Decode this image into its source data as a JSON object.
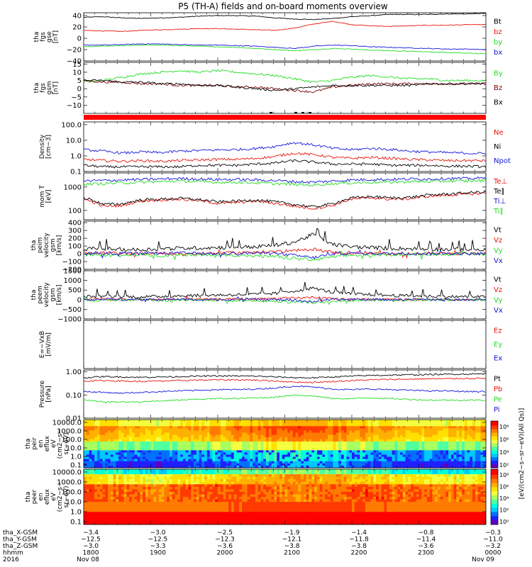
{
  "figure": {
    "title": "P5 (TH-A) fields and on-board moments overview",
    "year": "2016",
    "date_start": "Nov 08",
    "date_end": "Nov 09"
  },
  "colors": {
    "black": "#000000",
    "red": "#e8140c",
    "green": "#22dd22",
    "blue": "#1414d8",
    "darkred": "#7a0000"
  },
  "chart_data": [
    {
      "type": "line",
      "id": "fgs-gse",
      "ylabel": [
        "tha",
        "fgs",
        "gse",
        "[nT]"
      ],
      "yticks": [
        "40",
        "20",
        "0",
        "−20",
        "−40"
      ],
      "ylim": [
        -40,
        45
      ],
      "series": [
        {
          "name": "Bt",
          "color": "#000000",
          "values": [
            37,
            38,
            36,
            35,
            36,
            37,
            39,
            40,
            40,
            39,
            36,
            34,
            33,
            35,
            38,
            40,
            42,
            42,
            42,
            43,
            43,
            44
          ]
        },
        {
          "name": "bz",
          "color": "#e8140c",
          "values": [
            14,
            13,
            12,
            14,
            15,
            16,
            17,
            17,
            16,
            15,
            14,
            18,
            25,
            30,
            24,
            22,
            21,
            22,
            23,
            23,
            24,
            24
          ]
        },
        {
          "name": "by",
          "color": "#22dd22",
          "values": [
            -15,
            -14,
            -13,
            -12,
            -12,
            -13,
            -14,
            -15,
            -16,
            -18,
            -20,
            -22,
            -20,
            -18,
            -19,
            -21,
            -22,
            -23,
            -24,
            -25,
            -26,
            -28
          ]
        },
        {
          "name": "bx",
          "color": "#1414d8",
          "values": [
            -12,
            -12,
            -11,
            -10,
            -10,
            -11,
            -12,
            -12,
            -13,
            -14,
            -16,
            -18,
            -14,
            -12,
            -13,
            -15,
            -16,
            -17,
            -18,
            -19,
            -19,
            -20
          ]
        }
      ]
    },
    {
      "type": "line",
      "id": "fgs-gsm",
      "ylabel": [
        "tha",
        "fgs",
        "gsm",
        "[nT]"
      ],
      "yticks": [
        "15",
        "10",
        "5",
        "0",
        "−5",
        "−10"
      ],
      "ylim": [
        -15,
        16
      ],
      "series": [
        {
          "name": "By",
          "color": "#22dd22",
          "values": [
            4,
            5,
            7,
            9,
            10,
            11,
            10,
            11,
            10,
            9,
            8,
            6,
            4,
            5,
            7,
            8,
            7,
            6,
            6,
            5,
            5,
            5
          ]
        },
        {
          "name": "Bz",
          "color": "#7a0000",
          "values": [
            5,
            4,
            4,
            3,
            3,
            2,
            2,
            2,
            1,
            1,
            0,
            -1,
            -2,
            1,
            2,
            3,
            3,
            3,
            3,
            3,
            3,
            3
          ]
        },
        {
          "name": "Bx",
          "color": "#000000",
          "values": [
            5,
            5,
            4,
            4,
            3,
            3,
            2,
            2,
            1,
            0,
            -1,
            0,
            1,
            2,
            2,
            2,
            2,
            2,
            3,
            3,
            3,
            3
          ]
        }
      ]
    },
    {
      "type": "line",
      "id": "density",
      "scale": "log",
      "ylabel": [
        "Density",
        "[cm−3]"
      ],
      "yticks": [
        "100.0",
        "10.0",
        "1.0",
        "0.1"
      ],
      "ylim": [
        0.1,
        150
      ],
      "series": [
        {
          "name": "Ne",
          "color": "#e8140c",
          "values": [
            0.6,
            0.5,
            0.45,
            0.5,
            0.45,
            0.5,
            0.55,
            0.6,
            0.6,
            0.7,
            0.9,
            1.5,
            1.2,
            0.8,
            0.7,
            0.8,
            0.7,
            0.6,
            0.55,
            0.5,
            0.5,
            0.5
          ]
        },
        {
          "name": "Ni",
          "color": "#000000",
          "values": [
            0.25,
            0.2,
            0.2,
            0.2,
            0.2,
            0.2,
            0.25,
            0.25,
            0.25,
            0.3,
            0.35,
            0.5,
            0.4,
            0.3,
            0.3,
            0.3,
            0.25,
            0.25,
            0.25,
            0.22,
            0.22,
            0.2
          ]
        },
        {
          "name": "Npot",
          "color": "#1414d8",
          "values": [
            2.5,
            2,
            1.5,
            1.8,
            1.6,
            2,
            2.2,
            2.4,
            2.5,
            3,
            4,
            7,
            5,
            3,
            2.5,
            3,
            2.6,
            2,
            1.8,
            1.6,
            1.5,
            1.4
          ]
        }
      ]
    },
    {
      "type": "line",
      "id": "temperature",
      "scale": "log",
      "ylabel": [
        "mom T",
        "[eV]"
      ],
      "yticks": [
        "1000",
        "100"
      ],
      "ylim": [
        40,
        4000
      ],
      "series": [
        {
          "name": "Te⊥",
          "color": "#e8140c",
          "values": [
            300,
            150,
            160,
            250,
            280,
            300,
            260,
            200,
            220,
            250,
            200,
            150,
            120,
            160,
            300,
            350,
            300,
            320,
            400,
            450,
            500,
            550
          ]
        },
        {
          "name": "Te∥",
          "color": "#000000",
          "values": [
            350,
            180,
            190,
            280,
            300,
            330,
            290,
            230,
            250,
            280,
            230,
            180,
            140,
            190,
            340,
            390,
            340,
            360,
            450,
            500,
            560,
            620
          ]
        },
        {
          "name": "Ti⊥",
          "color": "#1414d8",
          "values": [
            1800,
            1900,
            2000,
            2100,
            2200,
            2300,
            2200,
            2100,
            2100,
            2000,
            1900,
            1700,
            1600,
            1800,
            2000,
            2100,
            2100,
            2200,
            2200,
            2300,
            2300,
            2400
          ]
        },
        {
          "name": "Ti∥",
          "color": "#22dd22",
          "values": [
            1300,
            1400,
            1500,
            1600,
            1700,
            1800,
            1700,
            1600,
            1600,
            1500,
            1400,
            1300,
            1200,
            1400,
            1500,
            1600,
            1600,
            1700,
            1700,
            1800,
            1800,
            1900
          ]
        }
      ]
    },
    {
      "type": "line",
      "id": "peim-velocity",
      "ylabel": [
        "tha",
        "peim",
        "velocity",
        "gsm",
        "[km/s]"
      ],
      "yticks": [
        "400",
        "300",
        "200",
        "100",
        "0",
        "−100",
        "−200"
      ],
      "ylim": [
        -200,
        420
      ],
      "series": [
        {
          "name": "Vt",
          "color": "#000000",
          "values": [
            60,
            70,
            55,
            50,
            65,
            70,
            75,
            80,
            85,
            90,
            110,
            150,
            250,
            120,
            90,
            80,
            70,
            65,
            60,
            55,
            55,
            50
          ]
        },
        {
          "name": "Vz",
          "color": "#e8140c",
          "values": [
            10,
            15,
            5,
            0,
            10,
            5,
            0,
            10,
            15,
            20,
            30,
            40,
            60,
            20,
            10,
            5,
            5,
            0,
            5,
            0,
            5,
            0
          ]
        },
        {
          "name": "Vy",
          "color": "#22dd22",
          "values": [
            -10,
            -20,
            -15,
            -10,
            -25,
            -20,
            -15,
            -10,
            -20,
            -30,
            -40,
            -60,
            -80,
            -40,
            -20,
            -15,
            -10,
            -10,
            -5,
            -10,
            -5,
            -5
          ]
        },
        {
          "name": "Vx",
          "color": "#1414d8",
          "values": [
            5,
            10,
            5,
            0,
            5,
            10,
            5,
            0,
            5,
            10,
            0,
            -20,
            -50,
            0,
            5,
            5,
            0,
            5,
            0,
            5,
            0,
            0
          ]
        }
      ]
    },
    {
      "type": "line",
      "id": "peem-velocity",
      "ylabel": [
        "tha",
        "peem",
        "velocity",
        "gsm",
        "[km/s]"
      ],
      "yticks": [
        "1500",
        "1000",
        "500",
        "0",
        "−500",
        "−1000"
      ],
      "ylim": [
        -1000,
        1500
      ],
      "series": [
        {
          "name": "Vt",
          "color": "#000000",
          "values": [
            150,
            180,
            160,
            140,
            170,
            200,
            220,
            240,
            260,
            280,
            320,
            450,
            600,
            380,
            300,
            260,
            220,
            200,
            180,
            160,
            150,
            140
          ]
        },
        {
          "name": "Vz",
          "color": "#e8140c",
          "values": [
            20,
            30,
            10,
            0,
            20,
            10,
            0,
            20,
            30,
            40,
            60,
            80,
            120,
            40,
            20,
            10,
            10,
            0,
            10,
            0,
            10,
            0
          ]
        },
        {
          "name": "Vy",
          "color": "#22dd22",
          "values": [
            -20,
            -40,
            -30,
            -20,
            -50,
            -40,
            -30,
            -20,
            -40,
            -60,
            -80,
            -120,
            -160,
            -80,
            -40,
            -30,
            -20,
            -20,
            -10,
            -20,
            -10,
            -10
          ]
        },
        {
          "name": "Vx",
          "color": "#1414d8",
          "values": [
            10,
            20,
            10,
            0,
            10,
            20,
            10,
            0,
            10,
            20,
            0,
            -40,
            -100,
            0,
            10,
            10,
            0,
            10,
            0,
            10,
            0,
            0
          ]
        }
      ]
    },
    {
      "type": "line",
      "id": "efield",
      "ylabel": [
        "E=−VxB",
        "[mV/m]"
      ],
      "yticks": [],
      "ylim": [
        0,
        1
      ],
      "series": [
        {
          "name": "Ez",
          "color": "#e8140c",
          "values": []
        },
        {
          "name": "Ey",
          "color": "#22dd22",
          "values": []
        },
        {
          "name": "Ex",
          "color": "#1414d8",
          "values": []
        }
      ]
    },
    {
      "type": "line",
      "id": "pressure",
      "scale": "log",
      "ylabel": [
        "Pressure",
        "[nPa]"
      ],
      "yticks": [
        "1.00",
        "0.10",
        "0.01"
      ],
      "ylim": [
        0.01,
        1.2
      ],
      "series": [
        {
          "name": "Pt",
          "color": "#000000",
          "values": [
            0.55,
            0.62,
            0.6,
            0.58,
            0.6,
            0.62,
            0.65,
            0.66,
            0.66,
            0.65,
            0.6,
            0.56,
            0.55,
            0.6,
            0.65,
            0.7,
            0.72,
            0.74,
            0.76,
            0.78,
            0.8,
            0.82
          ]
        },
        {
          "name": "Pb",
          "color": "#e8140c",
          "values": [
            0.4,
            0.42,
            0.4,
            0.38,
            0.4,
            0.42,
            0.44,
            0.45,
            0.45,
            0.44,
            0.4,
            0.36,
            0.35,
            0.38,
            0.42,
            0.45,
            0.47,
            0.48,
            0.5,
            0.5,
            0.52,
            0.52
          ]
        },
        {
          "name": "Pe",
          "color": "#22dd22",
          "values": [
            0.06,
            0.05,
            0.05,
            0.05,
            0.055,
            0.06,
            0.065,
            0.07,
            0.07,
            0.075,
            0.08,
            0.1,
            0.09,
            0.07,
            0.07,
            0.075,
            0.07,
            0.065,
            0.06,
            0.06,
            0.06,
            0.06
          ]
        },
        {
          "name": "Pi",
          "color": "#1414d8",
          "values": [
            0.14,
            0.13,
            0.12,
            0.13,
            0.14,
            0.15,
            0.16,
            0.17,
            0.17,
            0.18,
            0.2,
            0.24,
            0.22,
            0.18,
            0.17,
            0.18,
            0.17,
            0.16,
            0.15,
            0.15,
            0.14,
            0.14
          ]
        }
      ]
    },
    {
      "type": "heatmap",
      "id": "peir-en-eflux",
      "ylabel": [
        "tha",
        "peir",
        "en",
        "eflux",
        "eV",
        "(cm2−s−",
        "sr−eV)"
      ],
      "yticks": [
        "10000.0",
        "1000.0",
        "100.0",
        "10.0",
        "1.0",
        "0.1"
      ]
    },
    {
      "type": "heatmap",
      "id": "peer-en-eflux",
      "ylabel": [
        "tha",
        "peer",
        "en",
        "eflux",
        "eV",
        "(cm2−s−",
        "sr−eV)"
      ],
      "yticks": [
        "10000.0",
        "1000.0",
        "100.0",
        "10.0",
        "1.0",
        "0.1"
      ]
    }
  ],
  "colorbar": {
    "label": "[eV/(cm2−s−sr−eV)(All Qs)]",
    "label2": "[eV/(cm2−s−sr−eV)]",
    "ticks_top": [
      "10⁸",
      "10⁶",
      "10⁴",
      "10²"
    ],
    "ticks_bottom": [
      "10⁸",
      "10⁶",
      "10⁴",
      "10²",
      "10⁰"
    ]
  },
  "x_axis": {
    "hours": [
      "1800",
      "1900",
      "2000",
      "2100",
      "2200",
      "2300",
      "0000"
    ],
    "rows": [
      {
        "label": "tha_X-GSM",
        "values": [
          "−3.4",
          "−3.0",
          "−2.5",
          "−1.9",
          "−1.4",
          "−0.8",
          "−0.3"
        ]
      },
      {
        "label": "tha_Y-GSM",
        "values": [
          "−12.5",
          "−12.5",
          "−12.3",
          "−12.1",
          "−11.8",
          "−11.4",
          "−11.0"
        ]
      },
      {
        "label": "tha_Z-GSM",
        "values": [
          "−3.0",
          "−3.3",
          "−3.6",
          "−3.8",
          "−3.8",
          "−3.6",
          "−3.2"
        ]
      },
      {
        "label": "hhmm",
        "values": [
          "1800",
          "1900",
          "2000",
          "2100",
          "2200",
          "2300",
          "0000"
        ]
      }
    ]
  }
}
